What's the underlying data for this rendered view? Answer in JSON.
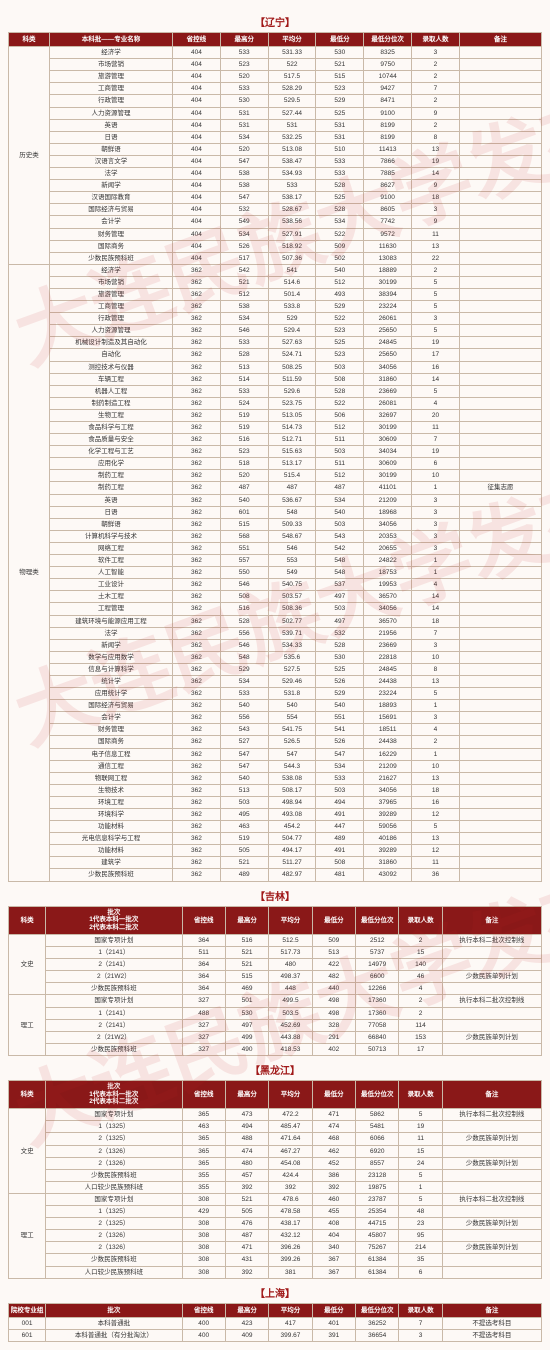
{
  "watermark": "大连民族大学发布",
  "sections": {
    "liaoning": {
      "title": "【辽宁】"
    },
    "jilin": {
      "title": "【吉林】"
    },
    "heilongjiang": {
      "title": "【黑龙江】"
    },
    "shanghai": {
      "title": "【上海】"
    }
  },
  "headers": {
    "ln": [
      "科类",
      "本科批——专业名称",
      "省控线",
      "最高分",
      "平均分",
      "最低分",
      "最低分位次",
      "录取人数",
      "备注"
    ],
    "jl": [
      "科类",
      "批次\n1代表本科一批次\n2代表本科二批次",
      "省控线",
      "最高分",
      "平均分",
      "最低分",
      "最低分位次",
      "录取人数",
      "备注"
    ],
    "hlj": [
      "科类",
      "批次\n1代表本科一批次\n2代表本科二批次",
      "省控线",
      "最高分",
      "平均分",
      "最低分",
      "最低分位次",
      "录取人数",
      "备注"
    ],
    "sh": [
      "院校专业组",
      "批次",
      "省控线",
      "最高分",
      "平均分",
      "最低分",
      "最低分位次",
      "录取人数",
      "备注"
    ]
  },
  "liaoning_history": {
    "cat": "历史类",
    "rows": [
      [
        "经济学",
        "404",
        "533",
        "531.33",
        "530",
        "8325",
        "3",
        ""
      ],
      [
        "市场营销",
        "404",
        "523",
        "522",
        "521",
        "9750",
        "2",
        ""
      ],
      [
        "旅游管理",
        "404",
        "520",
        "517.5",
        "515",
        "10744",
        "2",
        ""
      ],
      [
        "工商管理",
        "404",
        "533",
        "528.29",
        "523",
        "9427",
        "7",
        ""
      ],
      [
        "行政管理",
        "404",
        "530",
        "529.5",
        "529",
        "8471",
        "2",
        ""
      ],
      [
        "人力资源管理",
        "404",
        "531",
        "527.44",
        "525",
        "9100",
        "9",
        ""
      ],
      [
        "英语",
        "404",
        "531",
        "531",
        "531",
        "8199",
        "2",
        ""
      ],
      [
        "日语",
        "404",
        "534",
        "532.25",
        "531",
        "8199",
        "8",
        ""
      ],
      [
        "朝鲜语",
        "404",
        "520",
        "513.08",
        "510",
        "11413",
        "13",
        ""
      ],
      [
        "汉语言文学",
        "404",
        "547",
        "538.47",
        "533",
        "7866",
        "19",
        ""
      ],
      [
        "法学",
        "404",
        "538",
        "534.93",
        "533",
        "7885",
        "14",
        ""
      ],
      [
        "新闻学",
        "404",
        "538",
        "533",
        "528",
        "8627",
        "9",
        ""
      ],
      [
        "汉语国际教育",
        "404",
        "547",
        "538.17",
        "525",
        "9100",
        "18",
        ""
      ],
      [
        "国际经济与贸易",
        "404",
        "532",
        "528.67",
        "528",
        "8605",
        "3",
        ""
      ],
      [
        "会计学",
        "404",
        "549",
        "538.56",
        "534",
        "7742",
        "9",
        ""
      ],
      [
        "财务管理",
        "404",
        "534",
        "527.91",
        "522",
        "9572",
        "11",
        ""
      ],
      [
        "国际商务",
        "404",
        "526",
        "518.92",
        "509",
        "11630",
        "13",
        ""
      ],
      [
        "少数民族预科班",
        "404",
        "517",
        "507.36",
        "502",
        "13083",
        "22",
        ""
      ]
    ]
  },
  "liaoning_physics": {
    "cat": "物理类",
    "rows": [
      [
        "经济学",
        "362",
        "542",
        "541",
        "540",
        "18889",
        "2",
        ""
      ],
      [
        "市场营销",
        "362",
        "521",
        "514.6",
        "512",
        "30199",
        "5",
        ""
      ],
      [
        "旅游管理",
        "362",
        "512",
        "501.4",
        "493",
        "38394",
        "5",
        ""
      ],
      [
        "工商管理",
        "362",
        "538",
        "533.8",
        "529",
        "23224",
        "5",
        ""
      ],
      [
        "行政管理",
        "362",
        "534",
        "529",
        "522",
        "26061",
        "3",
        ""
      ],
      [
        "人力资源管理",
        "362",
        "546",
        "529.4",
        "523",
        "25650",
        "5",
        ""
      ],
      [
        "机械设计制造及其自动化",
        "362",
        "533",
        "527.63",
        "525",
        "24845",
        "19",
        ""
      ],
      [
        "自动化",
        "362",
        "528",
        "524.71",
        "523",
        "25650",
        "17",
        ""
      ],
      [
        "测控技术与仪器",
        "362",
        "513",
        "508.25",
        "503",
        "34056",
        "16",
        ""
      ],
      [
        "车辆工程",
        "362",
        "514",
        "511.59",
        "508",
        "31860",
        "14",
        ""
      ],
      [
        "机器人工程",
        "362",
        "533",
        "529.6",
        "528",
        "23669",
        "5",
        ""
      ],
      [
        "制药制造工程",
        "362",
        "524",
        "523.75",
        "522",
        "26081",
        "4",
        ""
      ],
      [
        "生物工程",
        "362",
        "519",
        "513.05",
        "506",
        "32697",
        "20",
        ""
      ],
      [
        "食品科学与工程",
        "362",
        "519",
        "514.73",
        "512",
        "30199",
        "11",
        ""
      ],
      [
        "食品质量与安全",
        "362",
        "516",
        "512.71",
        "511",
        "30609",
        "7",
        ""
      ],
      [
        "化学工程与工艺",
        "362",
        "523",
        "515.63",
        "503",
        "34034",
        "19",
        ""
      ],
      [
        "应用化学",
        "362",
        "518",
        "513.17",
        "511",
        "30609",
        "6",
        ""
      ],
      [
        "制药工程",
        "362",
        "520",
        "515.4",
        "512",
        "30199",
        "10",
        ""
      ],
      [
        "制药工程",
        "362",
        "487",
        "487",
        "487",
        "41101",
        "1",
        "征集志愿"
      ],
      [
        "英语",
        "362",
        "540",
        "536.67",
        "534",
        "21209",
        "3",
        ""
      ],
      [
        "日语",
        "362",
        "601",
        "548",
        "540",
        "18968",
        "3",
        ""
      ],
      [
        "朝鲜语",
        "362",
        "515",
        "509.33",
        "503",
        "34056",
        "3",
        ""
      ],
      [
        "计算机科学与技术",
        "362",
        "568",
        "548.67",
        "543",
        "20353",
        "3",
        ""
      ],
      [
        "网络工程",
        "362",
        "551",
        "546",
        "542",
        "20655",
        "3",
        ""
      ],
      [
        "软件工程",
        "362",
        "557",
        "553",
        "548",
        "24822",
        "1",
        ""
      ],
      [
        "人工智能",
        "362",
        "550",
        "549",
        "548",
        "18753",
        "1",
        ""
      ],
      [
        "工业设计",
        "362",
        "546",
        "540.75",
        "537",
        "19953",
        "4",
        ""
      ],
      [
        "土木工程",
        "362",
        "508",
        "503.57",
        "497",
        "36570",
        "14",
        ""
      ],
      [
        "工程管理",
        "362",
        "516",
        "508.36",
        "503",
        "34056",
        "14",
        ""
      ],
      [
        "建筑环境与能源应用工程",
        "362",
        "528",
        "502.77",
        "497",
        "36570",
        "18",
        ""
      ],
      [
        "法学",
        "362",
        "556",
        "539.71",
        "532",
        "21956",
        "7",
        ""
      ],
      [
        "新闻学",
        "362",
        "546",
        "534.33",
        "528",
        "23669",
        "3",
        ""
      ],
      [
        "数学与应用数学",
        "362",
        "548",
        "535.6",
        "530",
        "22818",
        "10",
        ""
      ],
      [
        "信息与计算科学",
        "362",
        "529",
        "527.5",
        "525",
        "24845",
        "8",
        ""
      ],
      [
        "统计学",
        "362",
        "534",
        "529.46",
        "526",
        "24438",
        "13",
        ""
      ],
      [
        "应用统计学",
        "362",
        "533",
        "531.8",
        "529",
        "23224",
        "5",
        ""
      ],
      [
        "国际经济与贸易",
        "362",
        "540",
        "540",
        "540",
        "18893",
        "1",
        ""
      ],
      [
        "会计学",
        "362",
        "556",
        "554",
        "551",
        "15691",
        "3",
        ""
      ],
      [
        "财务管理",
        "362",
        "543",
        "541.75",
        "541",
        "18511",
        "4",
        ""
      ],
      [
        "国际商务",
        "362",
        "527",
        "526.5",
        "526",
        "24438",
        "2",
        ""
      ],
      [
        "电子信息工程",
        "362",
        "547",
        "547",
        "547",
        "16229",
        "1",
        ""
      ],
      [
        "通信工程",
        "362",
        "547",
        "544.3",
        "534",
        "21209",
        "10",
        ""
      ],
      [
        "物联网工程",
        "362",
        "540",
        "538.08",
        "533",
        "21627",
        "13",
        ""
      ],
      [
        "生物技术",
        "362",
        "513",
        "508.17",
        "503",
        "34056",
        "18",
        ""
      ],
      [
        "环境工程",
        "362",
        "503",
        "498.94",
        "494",
        "37965",
        "16",
        ""
      ],
      [
        "环境科学",
        "362",
        "495",
        "493.08",
        "491",
        "39289",
        "12",
        ""
      ],
      [
        "功能材料",
        "362",
        "463",
        "454.2",
        "447",
        "59056",
        "5",
        ""
      ],
      [
        "光电信息科学与工程",
        "362",
        "519",
        "504.77",
        "489",
        "40186",
        "13",
        ""
      ],
      [
        "功能材料",
        "362",
        "505",
        "494.17",
        "491",
        "39289",
        "12",
        ""
      ],
      [
        "建筑学",
        "362",
        "521",
        "511.27",
        "508",
        "31860",
        "11",
        ""
      ],
      [
        "少数民族预科班",
        "362",
        "489",
        "482.97",
        "481",
        "43092",
        "36",
        ""
      ]
    ]
  },
  "jilin": {
    "ws": {
      "cat": "文史",
      "rows": [
        [
          "国家专项计划",
          "364",
          "516",
          "512.5",
          "509",
          "2512",
          "2",
          "执行本科二批次控制线"
        ],
        [
          "1（2141）",
          "511",
          "521",
          "517.73",
          "513",
          "5737",
          "15",
          ""
        ],
        [
          "2（2141）",
          "364",
          "521",
          "480",
          "422",
          "14979",
          "140",
          ""
        ],
        [
          "2（21W2）",
          "364",
          "515",
          "498.37",
          "482",
          "6600",
          "46",
          "少数民族单列计划"
        ],
        [
          "少数民族预科班",
          "364",
          "469",
          "448",
          "440",
          "12266",
          "4",
          ""
        ]
      ]
    },
    "lg": {
      "cat": "理工",
      "rows": [
        [
          "国家专项计划",
          "327",
          "501",
          "499.5",
          "498",
          "17360",
          "2",
          "执行本科二批次控制线"
        ],
        [
          "1（2141）",
          "488",
          "530",
          "503.5",
          "498",
          "17360",
          "2",
          ""
        ],
        [
          "2（2141）",
          "327",
          "497",
          "452.69",
          "328",
          "77058",
          "114",
          ""
        ],
        [
          "2（21W2）",
          "327",
          "499",
          "443.88",
          "291",
          "66840",
          "153",
          "少数民族单列计划"
        ],
        [
          "少数民族预科班",
          "327",
          "490",
          "418.53",
          "402",
          "50713",
          "17",
          ""
        ]
      ]
    }
  },
  "heilongjiang": {
    "ws": {
      "cat": "文史",
      "rows": [
        [
          "国家专项计划",
          "365",
          "473",
          "472.2",
          "471",
          "5862",
          "5",
          "执行本科二批次控制线"
        ],
        [
          "1（1325）",
          "463",
          "494",
          "485.47",
          "474",
          "5481",
          "19",
          ""
        ],
        [
          "2（1325）",
          "365",
          "488",
          "471.64",
          "468",
          "6066",
          "11",
          "少数民族单列计划"
        ],
        [
          "2（1326）",
          "365",
          "474",
          "467.27",
          "462",
          "6920",
          "15",
          ""
        ],
        [
          "2（1326）",
          "365",
          "480",
          "454.08",
          "452",
          "8557",
          "24",
          "少数民族单列计划"
        ],
        [
          "少数民族预科班",
          "355",
          "457",
          "424.4",
          "386",
          "23128",
          "5",
          ""
        ],
        [
          "人口较少民族预科班",
          "355",
          "392",
          "392",
          "392",
          "19875",
          "1",
          ""
        ]
      ]
    },
    "lg": {
      "cat": "理工",
      "rows": [
        [
          "国家专项计划",
          "308",
          "521",
          "478.6",
          "460",
          "23787",
          "5",
          "执行本科二批次控制线"
        ],
        [
          "1（1325）",
          "429",
          "505",
          "478.58",
          "455",
          "25354",
          "48",
          ""
        ],
        [
          "2（1325）",
          "308",
          "476",
          "438.17",
          "408",
          "44715",
          "23",
          "少数民族单列计划"
        ],
        [
          "2（1326）",
          "308",
          "487",
          "432.12",
          "404",
          "45807",
          "95",
          ""
        ],
        [
          "2（1326）",
          "308",
          "471",
          "396.26",
          "340",
          "75267",
          "214",
          "少数民族单列计划"
        ],
        [
          "少数民族预科班",
          "308",
          "431",
          "399.26",
          "367",
          "61384",
          "35",
          ""
        ],
        [
          "人口较少民族预科班",
          "308",
          "392",
          "381",
          "367",
          "61384",
          "6",
          ""
        ]
      ]
    }
  },
  "shanghai": {
    "rows": [
      [
        "001",
        "本科普通批",
        "400",
        "423",
        "417",
        "401",
        "36252",
        "7",
        "不提选考科目"
      ],
      [
        "601",
        "本科普通批（有分批淘汰）",
        "400",
        "409",
        "399.67",
        "391",
        "36654",
        "3",
        "不提选考科目"
      ]
    ]
  }
}
